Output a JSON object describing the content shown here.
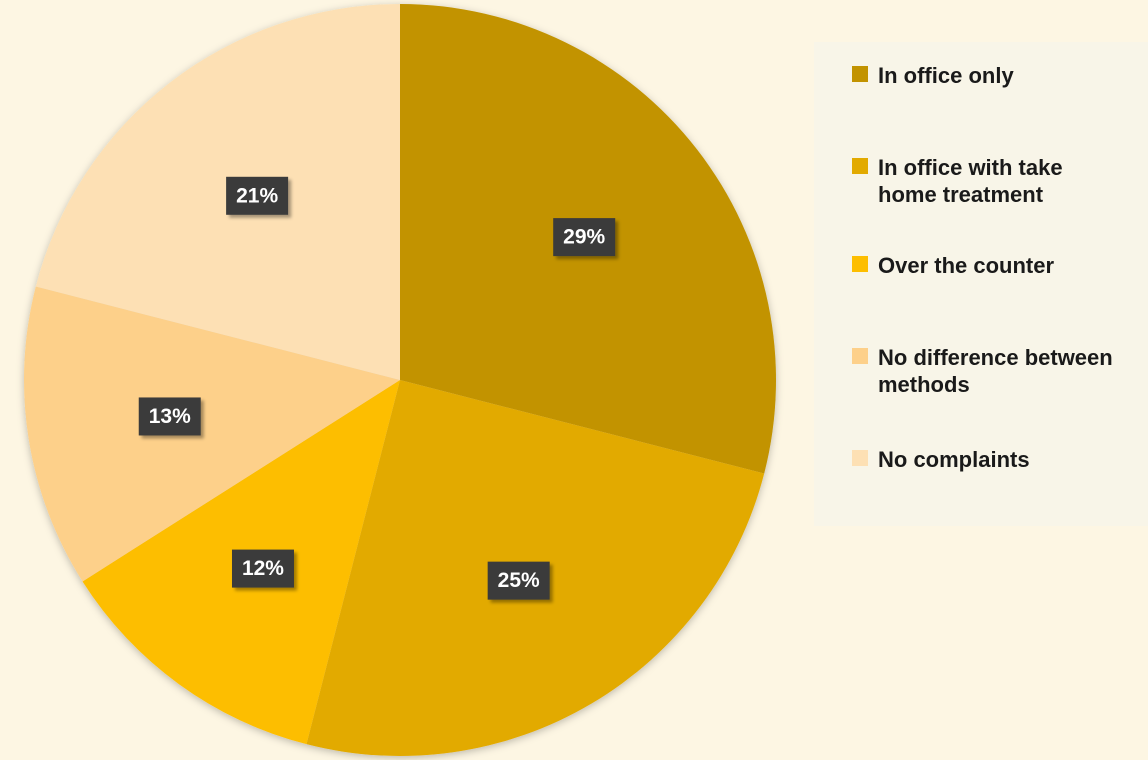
{
  "chart_data": {
    "type": "pie",
    "title": "",
    "legend_position": "right",
    "slices": [
      {
        "label": "In office only",
        "value": 29,
        "display": "29%",
        "color": "#c29300"
      },
      {
        "label": "In office with take home treatment",
        "value": 25,
        "display": "25%",
        "color": "#e2aa00"
      },
      {
        "label": "Over the counter",
        "value": 12,
        "display": "12%",
        "color": "#fdbe00"
      },
      {
        "label": "No difference between methods",
        "value": 13,
        "display": "13%",
        "color": "#fdd08a"
      },
      {
        "label": "No complaints",
        "value": 21,
        "display": "21%",
        "color": "#fde0b4"
      }
    ]
  }
}
